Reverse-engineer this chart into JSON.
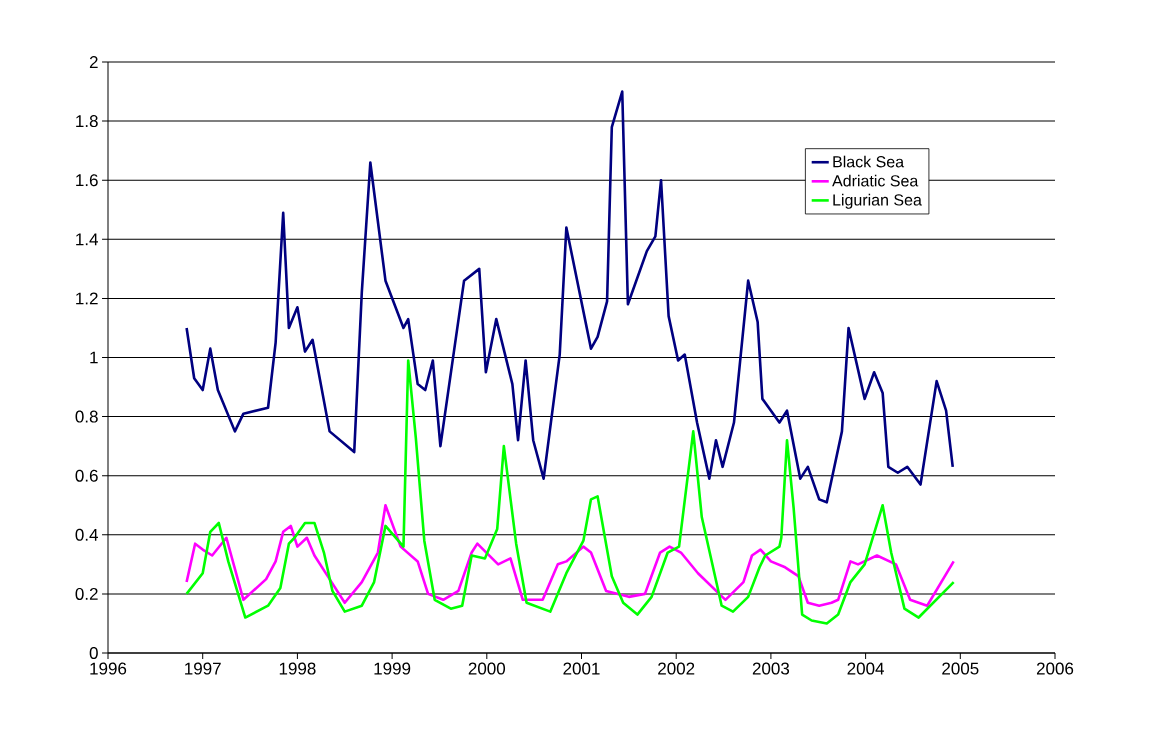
{
  "chart_data": {
    "type": "line",
    "xlim": [
      1996,
      2006
    ],
    "ylim": [
      0,
      2
    ],
    "xticks": [
      1996,
      1997,
      1998,
      1999,
      2000,
      2001,
      2002,
      2003,
      2004,
      2005,
      2006
    ],
    "yticks": [
      0,
      0.2,
      0.4,
      0.6,
      0.8,
      1,
      1.2,
      1.4,
      1.6,
      1.8,
      2
    ],
    "grid": "y",
    "legend": "top right",
    "series": [
      {
        "name": "Black Sea",
        "color": "#000080",
        "x": [
          1996.83,
          1996.91,
          1997.0,
          1997.08,
          1997.16,
          1997.34,
          1997.43,
          1997.69,
          1997.77,
          1997.85,
          1997.91,
          1998.0,
          1998.08,
          1998.16,
          1998.34,
          1998.6,
          1998.68,
          1998.77,
          1998.93,
          1999.12,
          1999.17,
          1999.27,
          1999.35,
          1999.43,
          1999.51,
          1999.76,
          1999.92,
          1999.99,
          2000.1,
          2000.27,
          2000.33,
          2000.41,
          2000.49,
          2000.6,
          2000.77,
          2000.84,
          2001.1,
          2001.17,
          2001.27,
          2001.32,
          2001.43,
          2001.49,
          2001.69,
          2001.78,
          2001.84,
          2001.92,
          2002.02,
          2002.09,
          2002.22,
          2002.35,
          2002.42,
          2002.49,
          2002.61,
          2002.76,
          2002.86,
          2002.91,
          2003.09,
          2003.17,
          2003.31,
          2003.39,
          2003.51,
          2003.59,
          2003.75,
          2003.82,
          2003.99,
          2004.09,
          2004.18,
          2004.24,
          2004.34,
          2004.44,
          2004.58,
          2004.75,
          2004.85,
          2004.92
        ],
        "values": [
          1.1,
          0.93,
          0.89,
          1.03,
          0.89,
          0.75,
          0.81,
          0.83,
          1.05,
          1.49,
          1.1,
          1.17,
          1.02,
          1.06,
          0.75,
          0.68,
          1.22,
          1.66,
          1.26,
          1.1,
          1.13,
          0.91,
          0.89,
          0.99,
          0.7,
          1.26,
          1.3,
          0.95,
          1.13,
          0.91,
          0.72,
          0.99,
          0.72,
          0.59,
          1.01,
          1.44,
          1.03,
          1.07,
          1.19,
          1.78,
          1.9,
          1.18,
          1.36,
          1.41,
          1.6,
          1.14,
          0.99,
          1.01,
          0.78,
          0.59,
          0.72,
          0.63,
          0.78,
          1.26,
          1.12,
          0.86,
          0.78,
          0.82,
          0.59,
          0.63,
          0.52,
          0.51,
          0.75,
          1.1,
          0.86,
          0.95,
          0.88,
          0.63,
          0.61,
          0.63,
          0.57,
          0.92,
          0.82,
          0.63
        ]
      },
      {
        "name": "Adriatic Sea",
        "color": "#ff00ff",
        "x": [
          1996.83,
          1996.92,
          1997.0,
          1997.1,
          1997.25,
          1997.43,
          1997.67,
          1997.77,
          1997.85,
          1997.93,
          1998.0,
          1998.1,
          1998.18,
          1998.32,
          1998.5,
          1998.68,
          1998.85,
          1998.93,
          1999.09,
          1999.27,
          1999.38,
          1999.54,
          1999.7,
          1999.84,
          1999.9,
          2000.12,
          2000.25,
          2000.38,
          2000.59,
          2000.75,
          2000.84,
          2001.02,
          2001.1,
          2001.26,
          2001.5,
          2001.67,
          2001.83,
          2001.93,
          2002.05,
          2002.23,
          2002.52,
          2002.71,
          2002.8,
          2002.89,
          2003.0,
          2003.15,
          2003.29,
          2003.39,
          2003.51,
          2003.64,
          2003.71,
          2003.84,
          2003.92,
          2004.12,
          2004.32,
          2004.47,
          2004.65,
          2004.93
        ],
        "values": [
          0.24,
          0.37,
          0.35,
          0.33,
          0.39,
          0.18,
          0.25,
          0.31,
          0.41,
          0.43,
          0.36,
          0.39,
          0.33,
          0.26,
          0.17,
          0.24,
          0.34,
          0.5,
          0.36,
          0.31,
          0.2,
          0.18,
          0.21,
          0.34,
          0.37,
          0.3,
          0.32,
          0.18,
          0.18,
          0.3,
          0.31,
          0.36,
          0.34,
          0.21,
          0.19,
          0.2,
          0.34,
          0.36,
          0.34,
          0.27,
          0.18,
          0.24,
          0.33,
          0.35,
          0.31,
          0.29,
          0.26,
          0.17,
          0.16,
          0.17,
          0.18,
          0.31,
          0.3,
          0.33,
          0.3,
          0.18,
          0.16,
          0.31
        ]
      },
      {
        "name": "Ligurian Sea",
        "color": "#00ff00",
        "x": [
          1996.83,
          1997.0,
          1997.08,
          1997.17,
          1997.27,
          1997.45,
          1997.69,
          1997.82,
          1997.91,
          1997.97,
          1998.08,
          1998.18,
          1998.28,
          1998.37,
          1998.5,
          1998.68,
          1998.81,
          1998.93,
          1999.12,
          1999.17,
          1999.25,
          1999.34,
          1999.45,
          1999.62,
          1999.74,
          1999.84,
          1999.98,
          2000.11,
          2000.18,
          2000.31,
          2000.42,
          2000.67,
          2000.84,
          2001.02,
          2001.1,
          2001.17,
          2001.32,
          2001.44,
          2001.59,
          2001.74,
          2001.91,
          2002.03,
          2002.18,
          2002.27,
          2002.48,
          2002.6,
          2002.76,
          2002.88,
          2002.94,
          2003.09,
          2003.11,
          2003.17,
          2003.24,
          2003.33,
          2003.43,
          2003.59,
          2003.71,
          2003.84,
          2003.99,
          2004.18,
          2004.27,
          2004.41,
          2004.56,
          2004.93
        ],
        "values": [
          0.2,
          0.27,
          0.41,
          0.44,
          0.31,
          0.12,
          0.16,
          0.22,
          0.37,
          0.39,
          0.44,
          0.44,
          0.34,
          0.21,
          0.14,
          0.16,
          0.24,
          0.43,
          0.36,
          0.99,
          0.73,
          0.38,
          0.18,
          0.15,
          0.16,
          0.33,
          0.32,
          0.42,
          0.7,
          0.37,
          0.17,
          0.14,
          0.27,
          0.38,
          0.52,
          0.53,
          0.26,
          0.17,
          0.13,
          0.19,
          0.34,
          0.36,
          0.75,
          0.46,
          0.16,
          0.14,
          0.19,
          0.29,
          0.33,
          0.36,
          0.39,
          0.72,
          0.49,
          0.13,
          0.11,
          0.1,
          0.13,
          0.24,
          0.3,
          0.5,
          0.34,
          0.15,
          0.12,
          0.24
        ]
      }
    ]
  }
}
